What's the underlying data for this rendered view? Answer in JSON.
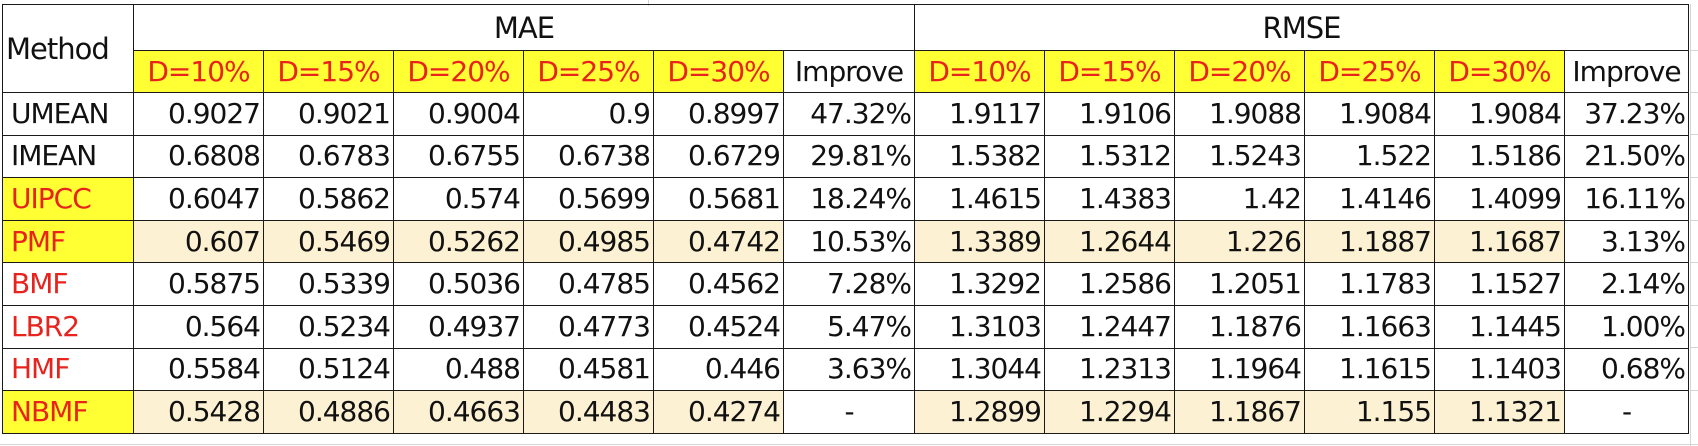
{
  "table": {
    "method_header": "Method",
    "groups": [
      {
        "label": "MAE"
      },
      {
        "label": "RMSE"
      }
    ],
    "sub_headers": [
      "D=10%",
      "D=15%",
      "D=20%",
      "D=25%",
      "D=30%",
      "Improve"
    ],
    "rows": [
      {
        "method": "UMEAN",
        "mae": [
          "0.9027",
          "0.9021",
          "0.9004",
          "0.9",
          "0.8997",
          "47.32%"
        ],
        "rmse": [
          "1.9117",
          "1.9106",
          "1.9088",
          "1.9084",
          "1.9084",
          "37.23%"
        ]
      },
      {
        "method": "IMEAN",
        "mae": [
          "0.6808",
          "0.6783",
          "0.6755",
          "0.6738",
          "0.6729",
          "29.81%"
        ],
        "rmse": [
          "1.5382",
          "1.5312",
          "1.5243",
          "1.522",
          "1.5186",
          "21.50%"
        ]
      },
      {
        "method": "UIPCC",
        "mae": [
          "0.6047",
          "0.5862",
          "0.574",
          "0.5699",
          "0.5681",
          "18.24%"
        ],
        "rmse": [
          "1.4615",
          "1.4383",
          "1.42",
          "1.4146",
          "1.4099",
          "16.11%"
        ]
      },
      {
        "method": "PMF",
        "mae": [
          "0.607",
          "0.5469",
          "0.5262",
          "0.4985",
          "0.4742",
          "10.53%"
        ],
        "rmse": [
          "1.3389",
          "1.2644",
          "1.226",
          "1.1887",
          "1.1687",
          "3.13%"
        ]
      },
      {
        "method": "BMF",
        "mae": [
          "0.5875",
          "0.5339",
          "0.5036",
          "0.4785",
          "0.4562",
          "7.28%"
        ],
        "rmse": [
          "1.3292",
          "1.2586",
          "1.2051",
          "1.1783",
          "1.1527",
          "2.14%"
        ]
      },
      {
        "method": "LBR2",
        "mae": [
          "0.564",
          "0.5234",
          "0.4937",
          "0.4773",
          "0.4524",
          "5.47%"
        ],
        "rmse": [
          "1.3103",
          "1.2447",
          "1.1876",
          "1.1663",
          "1.1445",
          "1.00%"
        ]
      },
      {
        "method": "HMF",
        "mae": [
          "0.5584",
          "0.5124",
          "0.488",
          "0.4581",
          "0.446",
          "3.63%"
        ],
        "rmse": [
          "1.3044",
          "1.2313",
          "1.1964",
          "1.1615",
          "1.1403",
          "0.68%"
        ]
      },
      {
        "method": "NBMF",
        "mae": [
          "0.5428",
          "0.4886",
          "0.4663",
          "0.4483",
          "0.4274",
          "-"
        ],
        "rmse": [
          "1.2899",
          "1.2294",
          "1.1867",
          "1.155",
          "1.1321",
          "-"
        ]
      }
    ]
  },
  "colors": {
    "header_fill": "#ffff33",
    "header_text": "#e8231d",
    "method_red": "#e8231d",
    "row_shade": "#fdf1d3",
    "border": "#1a1a1a"
  }
}
